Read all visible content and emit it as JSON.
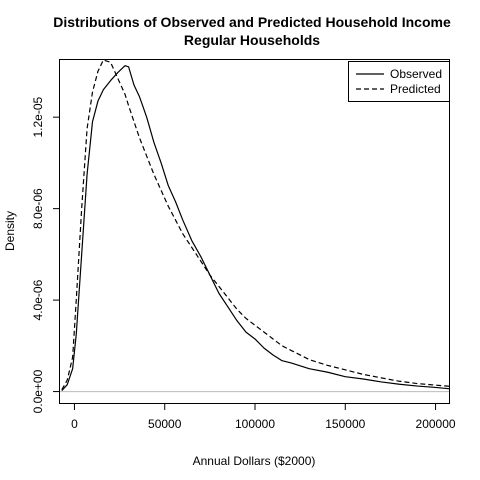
{
  "chart_data": {
    "type": "line",
    "title": "Distributions of Observed and Predicted Household Income",
    "subtitle": "Regular Households",
    "xlabel": "Annual Dollars ($2000)",
    "ylabel": "Density",
    "xlim": [
      -8000,
      208000
    ],
    "ylim": [
      -5e-07,
      1.45e-05
    ],
    "xticks": [
      0,
      50000,
      100000,
      150000,
      200000
    ],
    "xtick_labels": [
      "0",
      "50000",
      "100000",
      "150000",
      "200000"
    ],
    "yticks": [
      0,
      4e-06,
      8e-06,
      1.2e-05
    ],
    "ytick_labels": [
      "0.0e+00",
      "4.0e-06",
      "8.0e-06",
      "1.2e-05"
    ],
    "grid": false,
    "legend_position": "top-right",
    "baseline_color": "#bbbbbb",
    "series": [
      {
        "name": "Observed",
        "style": "solid",
        "color": "#000000",
        "x": [
          -7000,
          -4000,
          -1000,
          1000,
          4000,
          7000,
          10000,
          13000,
          16000,
          20000,
          24000,
          28000,
          30000,
          33000,
          36000,
          40000,
          44000,
          48000,
          52000,
          56000,
          60000,
          65000,
          70000,
          75000,
          80000,
          85000,
          90000,
          95000,
          100000,
          105000,
          110000,
          115000,
          120000,
          130000,
          140000,
          150000,
          160000,
          170000,
          180000,
          190000,
          200000,
          208000
        ],
        "y": [
          4e-08,
          3e-07,
          1e-06,
          2.5e-06,
          6e-06,
          9.5e-06,
          1.18e-05,
          1.27e-05,
          1.32e-05,
          1.36e-05,
          1.395e-05,
          1.425e-05,
          1.42e-05,
          1.34e-05,
          1.29e-05,
          1.2e-05,
          1.09e-05,
          1e-05,
          9e-06,
          8.3e-06,
          7.5e-06,
          6.6e-06,
          5.9e-06,
          5.1e-06,
          4.3e-06,
          3.7e-06,
          3.1e-06,
          2.6e-06,
          2.3e-06,
          1.9e-06,
          1.6e-06,
          1.35e-06,
          1.25e-06,
          1e-06,
          8.5e-07,
          6.5e-07,
          5.5e-07,
          4.2e-07,
          3.2e-07,
          2.4e-07,
          1.8e-07,
          1.2e-07
        ]
      },
      {
        "name": "Predicted",
        "style": "dashed",
        "color": "#000000",
        "x": [
          -7000,
          -4000,
          -1000,
          1000,
          4000,
          7000,
          10000,
          13000,
          16000,
          20000,
          24000,
          28000,
          30000,
          33000,
          36000,
          40000,
          44000,
          48000,
          52000,
          56000,
          60000,
          65000,
          70000,
          75000,
          80000,
          85000,
          90000,
          95000,
          100000,
          105000,
          110000,
          115000,
          120000,
          130000,
          140000,
          150000,
          160000,
          170000,
          180000,
          190000,
          200000,
          208000
        ],
        "y": [
          8e-08,
          5e-07,
          1.5e-06,
          4e-06,
          8e-06,
          1.15e-05,
          1.31e-05,
          1.4e-05,
          1.45e-05,
          1.44e-05,
          1.37e-05,
          1.3e-05,
          1.25e-05,
          1.18e-05,
          1.11e-05,
          1.03e-05,
          9.5e-06,
          8.8e-06,
          8.1e-06,
          7.5e-06,
          6.9e-06,
          6.3e-06,
          5.7e-06,
          5.1e-06,
          4.6e-06,
          4.1e-06,
          3.6e-06,
          3.2e-06,
          2.9e-06,
          2.6e-06,
          2.3e-06,
          2e-06,
          1.8e-06,
          1.4e-06,
          1.15e-06,
          9.5e-07,
          7.5e-07,
          6e-07,
          4.5e-07,
          3.5e-07,
          2.8e-07,
          2.3e-07
        ]
      }
    ]
  }
}
